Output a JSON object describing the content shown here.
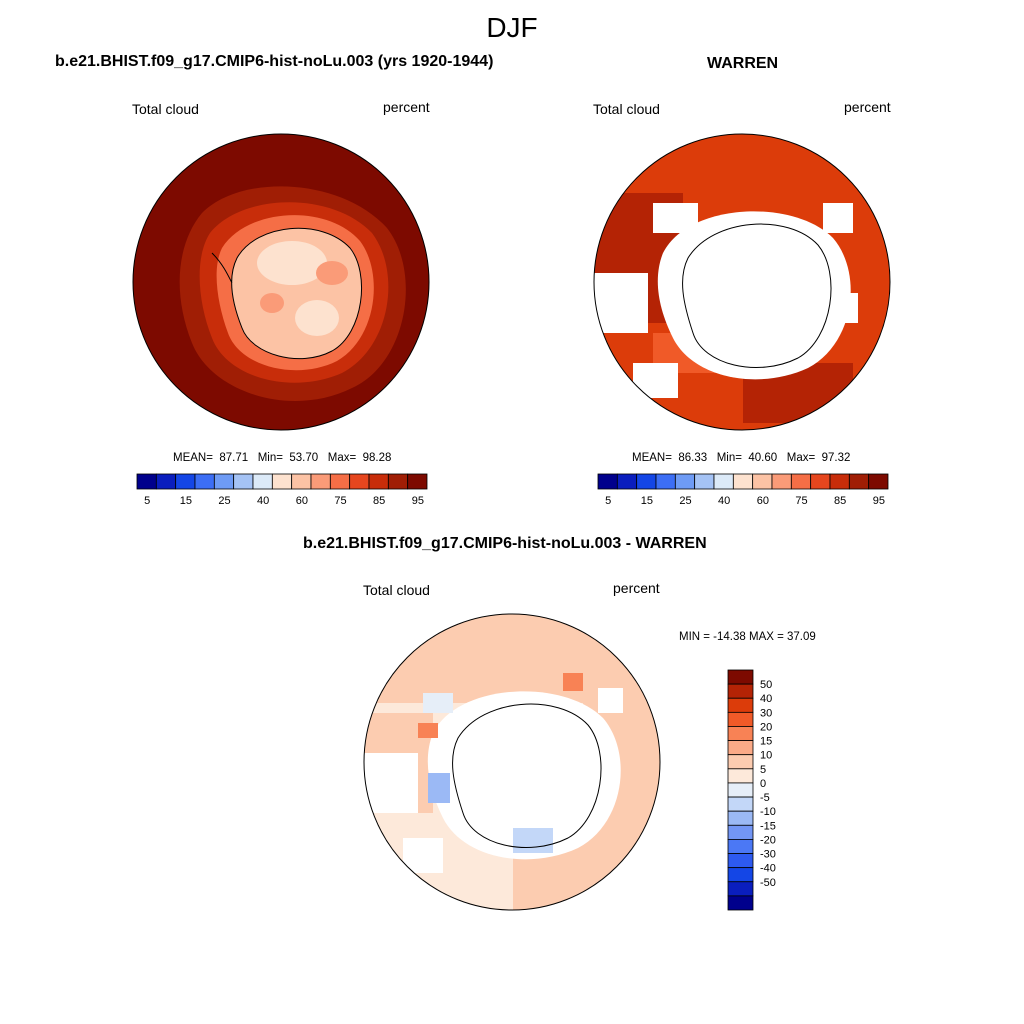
{
  "figure": {
    "title": "DJF",
    "colors": {
      "seq": [
        "#00008c",
        "#0a1ebe",
        "#1446e6",
        "#3c6ef5",
        "#6e9bf5",
        "#a5c3f5",
        "#dceaf8",
        "#fde2cf",
        "#fcc3a5",
        "#fa9b78",
        "#f56e46",
        "#e6461e",
        "#c82d0a",
        "#a01e05",
        "#7d0a00"
      ],
      "div": [
        "#00008c",
        "#0a1ebe",
        "#1446e6",
        "#2d5af0",
        "#4b78f5",
        "#7396f5",
        "#9bb9f5",
        "#c3d7f8",
        "#e6eef8",
        "#fde9da",
        "#fcccb0",
        "#fbaa87",
        "#f88255",
        "#f05a28",
        "#dc3c0a",
        "#b42305",
        "#7d0a00"
      ],
      "missing": "#ffffff"
    }
  },
  "panels": {
    "left": {
      "title": "b.e21.BHIST.f09_g17.CMIP6-hist-noLu.003 (yrs 1920-1944)",
      "left_label": "Total cloud",
      "right_label": "percent",
      "stats": {
        "mean_label": "MEAN=",
        "mean": "87.71",
        "min_label": "Min=",
        "min": "53.70",
        "max_label": "Max=",
        "max": "98.28"
      }
    },
    "right": {
      "title": "WARREN",
      "left_label": "Total cloud",
      "right_label": "percent",
      "stats": {
        "mean_label": "MEAN=",
        "mean": "86.33",
        "min_label": "Min=",
        "min": "40.60",
        "max_label": "Max=",
        "max": "97.32"
      }
    },
    "diff": {
      "title": "b.e21.BHIST.f09_g17.CMIP6-hist-noLu.003 - WARREN",
      "left_label": "Total cloud",
      "right_label": "percent",
      "stats": "MIN = -14.38 MAX =  37.09"
    }
  },
  "chart_data": [
    {
      "type": "heatmap",
      "projection": "south-polar-stereographic",
      "title": "b.e21.BHIST.f09_g17.CMIP6-hist-noLu.003 (yrs 1920-1944)",
      "variable": "Total cloud",
      "units": "percent",
      "mean": 87.71,
      "min": 53.7,
      "max": 98.28,
      "colorbar_ticks": [
        "5",
        "15",
        "25",
        "40",
        "60",
        "75",
        "85",
        "95"
      ],
      "colorbar_levels": [
        0,
        5,
        10,
        15,
        20,
        25,
        30,
        40,
        50,
        60,
        70,
        75,
        80,
        85,
        90,
        95,
        100
      ],
      "field_zones": [
        {
          "region": "continent interior",
          "value": 60
        },
        {
          "region": "continent coast",
          "value": 72
        },
        {
          "region": "coastal ring",
          "value": 88
        },
        {
          "region": "southern ocean",
          "value": 96
        }
      ]
    },
    {
      "type": "heatmap",
      "projection": "south-polar-stereographic",
      "title": "WARREN",
      "variable": "Total cloud",
      "units": "percent",
      "mean": 86.33,
      "min": 40.6,
      "max": 97.32,
      "colorbar_ticks": [
        "5",
        "15",
        "25",
        "40",
        "60",
        "75",
        "85",
        "95"
      ],
      "colorbar_levels": [
        0,
        5,
        10,
        15,
        20,
        25,
        30,
        40,
        50,
        60,
        70,
        75,
        80,
        85,
        90,
        95,
        100
      ],
      "field_zones": [
        {
          "region": "southern ocean",
          "value": 88
        },
        {
          "region": "ross and weddell sectors",
          "value": 93
        },
        {
          "region": "continent",
          "value": "missing"
        }
      ]
    },
    {
      "type": "heatmap",
      "projection": "south-polar-stereographic",
      "title": "b.e21.BHIST.f09_g17.CMIP6-hist-noLu.003 - WARREN",
      "variable": "Total cloud",
      "units": "percent",
      "min": -14.38,
      "max": 37.09,
      "colorbar_ticks": [
        "50",
        "40",
        "30",
        "20",
        "15",
        "10",
        "5",
        "0",
        "-5",
        "-10",
        "-15",
        "-20",
        "-30",
        "-40",
        "-50"
      ],
      "colorbar_levels": [
        -60,
        -50,
        -40,
        -30,
        -20,
        -15,
        -10,
        -5,
        0,
        5,
        10,
        15,
        20,
        30,
        40,
        50,
        60
      ],
      "field_zones": [
        {
          "region": "southern ocean",
          "value": 7
        },
        {
          "region": "near coast",
          "value": 12
        },
        {
          "region": "amundsen sector",
          "value": -8
        },
        {
          "region": "continent",
          "value": "missing"
        }
      ]
    }
  ]
}
